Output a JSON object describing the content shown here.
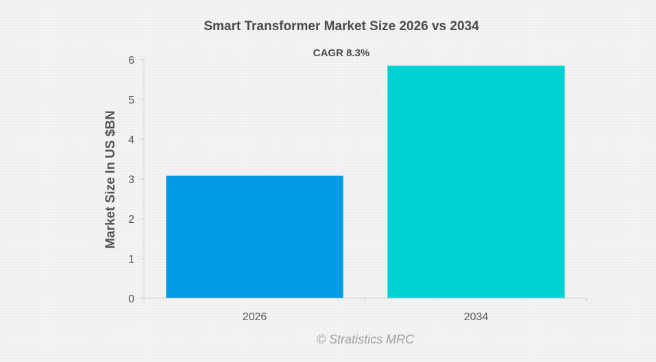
{
  "chart_data": {
    "type": "bar",
    "title": "Smart Transformer Market Size 2026 vs 2034",
    "annotation": "CAGR 8.3%",
    "ylabel": "Market Size In US $BN",
    "xlabel": "",
    "categories": [
      "2026",
      "2034"
    ],
    "values": [
      3.08,
      5.85
    ],
    "ylim": [
      0,
      6
    ],
    "yticks": [
      0,
      1,
      2,
      3,
      4,
      5,
      6
    ],
    "bar_colors": [
      "#039be5",
      "#00d2d3"
    ],
    "grid": false,
    "legend": "none"
  },
  "watermark": "© Stratistics MRC",
  "colors": {
    "title": "#4a4a4a",
    "axis_text": "#555555",
    "axis_line": "#d0d0d0",
    "watermark": "#a0a0a0"
  }
}
